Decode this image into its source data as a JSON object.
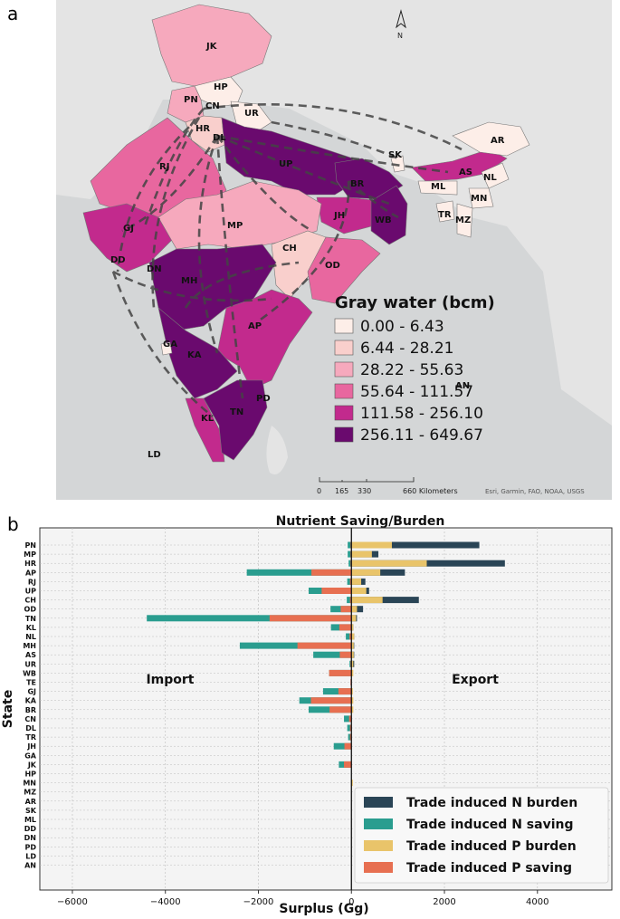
{
  "panel_a": {
    "label": "a",
    "north_label": "N",
    "legend": {
      "title": "Gray water (bcm)",
      "classes": [
        {
          "range": "0.00 - 6.43",
          "color": "#fdeee8"
        },
        {
          "range": "6.44 - 28.21",
          "color": "#f9cfcc"
        },
        {
          "range": "28.22 - 55.63",
          "color": "#f6a9bd"
        },
        {
          "range": "55.64 - 111.57",
          "color": "#e8679f"
        },
        {
          "range": "111.58 - 256.10",
          "color": "#c22a8d"
        },
        {
          "range": "256.11 - 649.67",
          "color": "#6a0a6e"
        }
      ]
    },
    "scale_ticks": [
      "0",
      "165",
      "330",
      "660 Kilometers"
    ],
    "credits": "Esri, Garmin, FAO, NOAA, USGS",
    "states": [
      "JK",
      "HP",
      "PN",
      "CN",
      "UR",
      "HR",
      "DL",
      "RJ",
      "UP",
      "SK",
      "AR",
      "AS",
      "NL",
      "ML",
      "MN",
      "TR",
      "MZ",
      "BR",
      "JH",
      "WB",
      "GJ",
      "MP",
      "DD",
      "DN",
      "MH",
      "CH",
      "OD",
      "GA",
      "KA",
      "AP",
      "TN",
      "PD",
      "KL",
      "AN",
      "LD"
    ]
  },
  "chart_data": {
    "type": "bar",
    "orientation": "horizontal",
    "stacked": true,
    "panel_label": "b",
    "title": "Nutrient Saving/Burden",
    "xlabel": "Surplus (Gg)",
    "ylabel": "State",
    "xlim": [
      -6700,
      5600
    ],
    "xticks": [
      -6000,
      -4000,
      -2000,
      0,
      2000,
      4000
    ],
    "xtick_labels": [
      "−6000",
      "−4000",
      "−2000",
      "0",
      "2000",
      "4000"
    ],
    "grid": true,
    "legend_position": "bottom-right",
    "annotations": [
      "Import",
      "Export"
    ],
    "categories": [
      "PN",
      "MP",
      "HR",
      "AP",
      "RJ",
      "UP",
      "CH",
      "OD",
      "TN",
      "KL",
      "NL",
      "MH",
      "AS",
      "UR",
      "WB",
      "TE",
      "GJ",
      "KA",
      "BR",
      "CN",
      "DL",
      "TR",
      "JH",
      "GA",
      "JK",
      "HP",
      "MN",
      "MZ",
      "AR",
      "SK",
      "ML",
      "DD",
      "DN",
      "PD",
      "LD",
      "AN"
    ],
    "series": [
      {
        "name": "Trade induced N burden",
        "color": "#2a4556",
        "values": [
          2750,
          580,
          3300,
          1150,
          300,
          380,
          1450,
          250,
          120,
          40,
          60,
          60,
          60,
          60,
          20,
          0,
          0,
          0,
          0,
          0,
          0,
          0,
          0,
          0,
          0,
          0,
          0,
          0,
          0,
          0,
          0,
          0,
          0,
          0,
          0,
          0
        ]
      },
      {
        "name": "Trade induced N saving",
        "color": "#2a9d8f",
        "values": [
          -80,
          -80,
          -60,
          -2250,
          -90,
          -920,
          -100,
          -450,
          -4400,
          -440,
          -120,
          -2400,
          -820,
          -40,
          -480,
          0,
          -610,
          -1120,
          -920,
          -160,
          -90,
          -70,
          -380,
          0,
          -270,
          0,
          0,
          0,
          0,
          0,
          0,
          0,
          0,
          0,
          0,
          0
        ]
      },
      {
        "name": "Trade induced P burden",
        "color": "#e9c46a",
        "values": [
          870,
          440,
          1620,
          620,
          210,
          320,
          670,
          120,
          100,
          40,
          60,
          50,
          50,
          40,
          40,
          0,
          30,
          40,
          40,
          0,
          0,
          0,
          0,
          0,
          0,
          0,
          30,
          0,
          0,
          0,
          0,
          0,
          0,
          0,
          0,
          0
        ]
      },
      {
        "name": "Trade induced P saving",
        "color": "#e76f51",
        "values": [
          -20,
          -20,
          -20,
          -860,
          -30,
          -640,
          -30,
          -230,
          -1760,
          -260,
          -40,
          -1160,
          -250,
          -20,
          -480,
          -20,
          -280,
          -870,
          -470,
          -50,
          -30,
          -30,
          -150,
          0,
          -160,
          0,
          0,
          0,
          0,
          0,
          0,
          0,
          0,
          0,
          0,
          0
        ]
      }
    ]
  }
}
